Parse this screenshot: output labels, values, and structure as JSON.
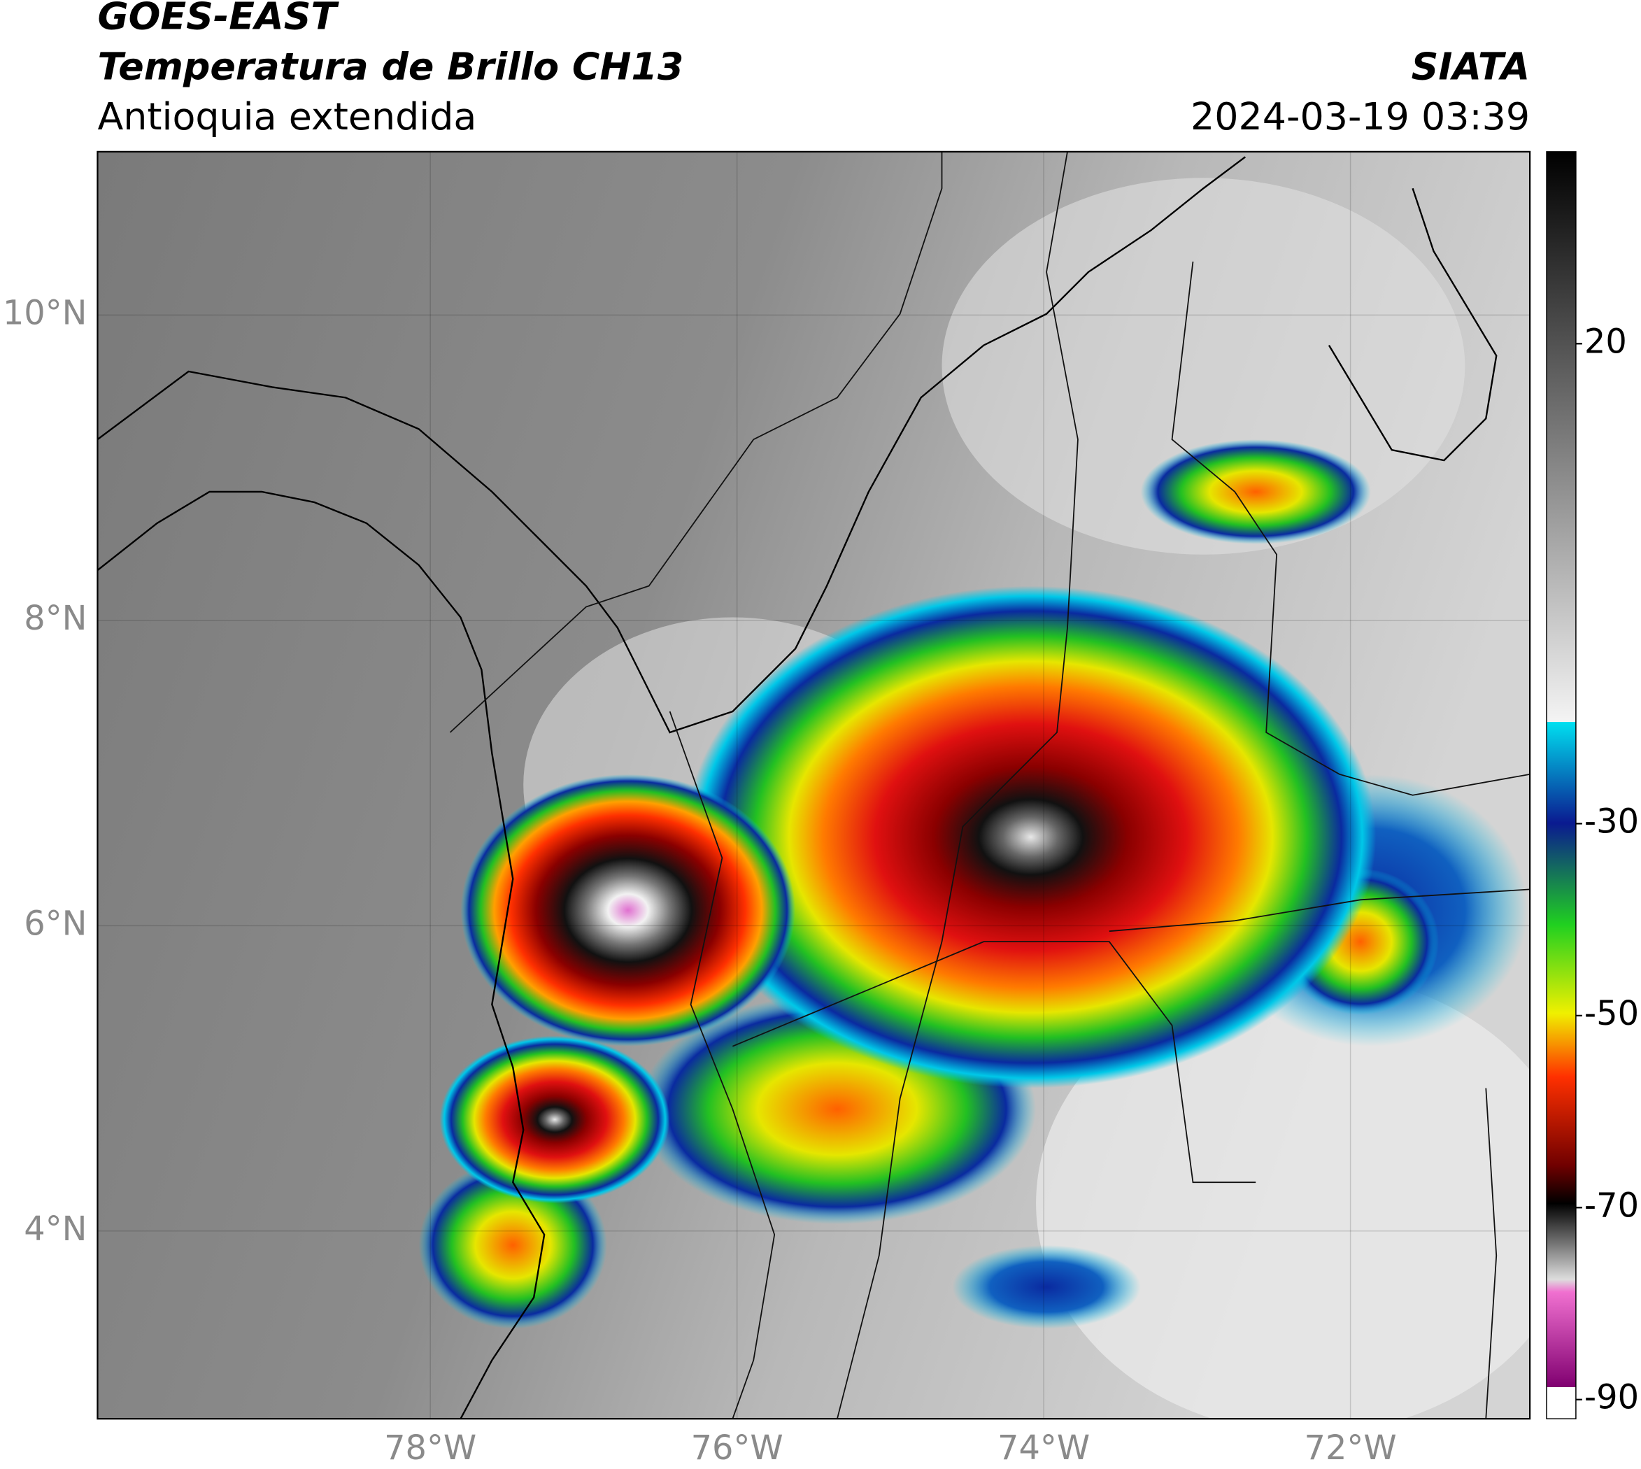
{
  "map": {
    "title": "GOES-EAST",
    "subtitle": "Temperatura de Brillo CH13",
    "region": "Antioquia extendida",
    "source": "SIATA",
    "datetime": "2024-03-19 03:39",
    "lonlim": [
      -80.17,
      -70.83
    ],
    "latlim": [
      2.77,
      11.07
    ],
    "lonticks": [
      {
        "value": -78,
        "label": "78°W"
      },
      {
        "value": -76,
        "label": "76°W"
      },
      {
        "value": -74,
        "label": "74°W"
      },
      {
        "value": -72,
        "label": "72°W"
      }
    ],
    "latticks": [
      {
        "value": 10,
        "label": "10°N"
      },
      {
        "value": 8,
        "label": "8°N"
      },
      {
        "value": 6,
        "label": "6°N"
      },
      {
        "value": 4,
        "label": "4°N"
      }
    ],
    "colorbar": {
      "lim": [
        -92,
        40
      ],
      "ticks": [
        20,
        -30,
        -50,
        -70,
        -90
      ]
    },
    "grid": true
  }
}
